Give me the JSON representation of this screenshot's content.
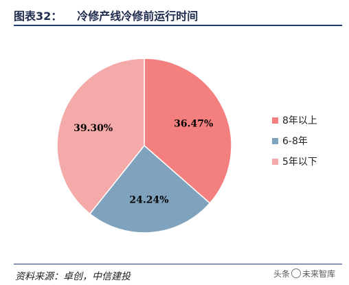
{
  "header": {
    "label": "图表32：",
    "title": "冷修产线冷修前运行时间"
  },
  "footer": {
    "source": "资料来源：卓创，中信建投",
    "watermark_left": "头条",
    "watermark_right": "未来智库"
  },
  "colors": {
    "rule": "#1f3c78"
  },
  "chart_data": {
    "type": "pie",
    "title": "冷修产线冷修前运行时间",
    "legend_position": "right",
    "slices": [
      {
        "name": "8年以上",
        "value": 36.47,
        "label": "36.47%",
        "color": "#f47f7f"
      },
      {
        "name": "6-8年",
        "value": 24.24,
        "label": "24.24%",
        "color": "#7fa3bd"
      },
      {
        "name": "5年以下",
        "value": 39.3,
        "label": "39.30%",
        "color": "#f5aaaa"
      }
    ]
  }
}
